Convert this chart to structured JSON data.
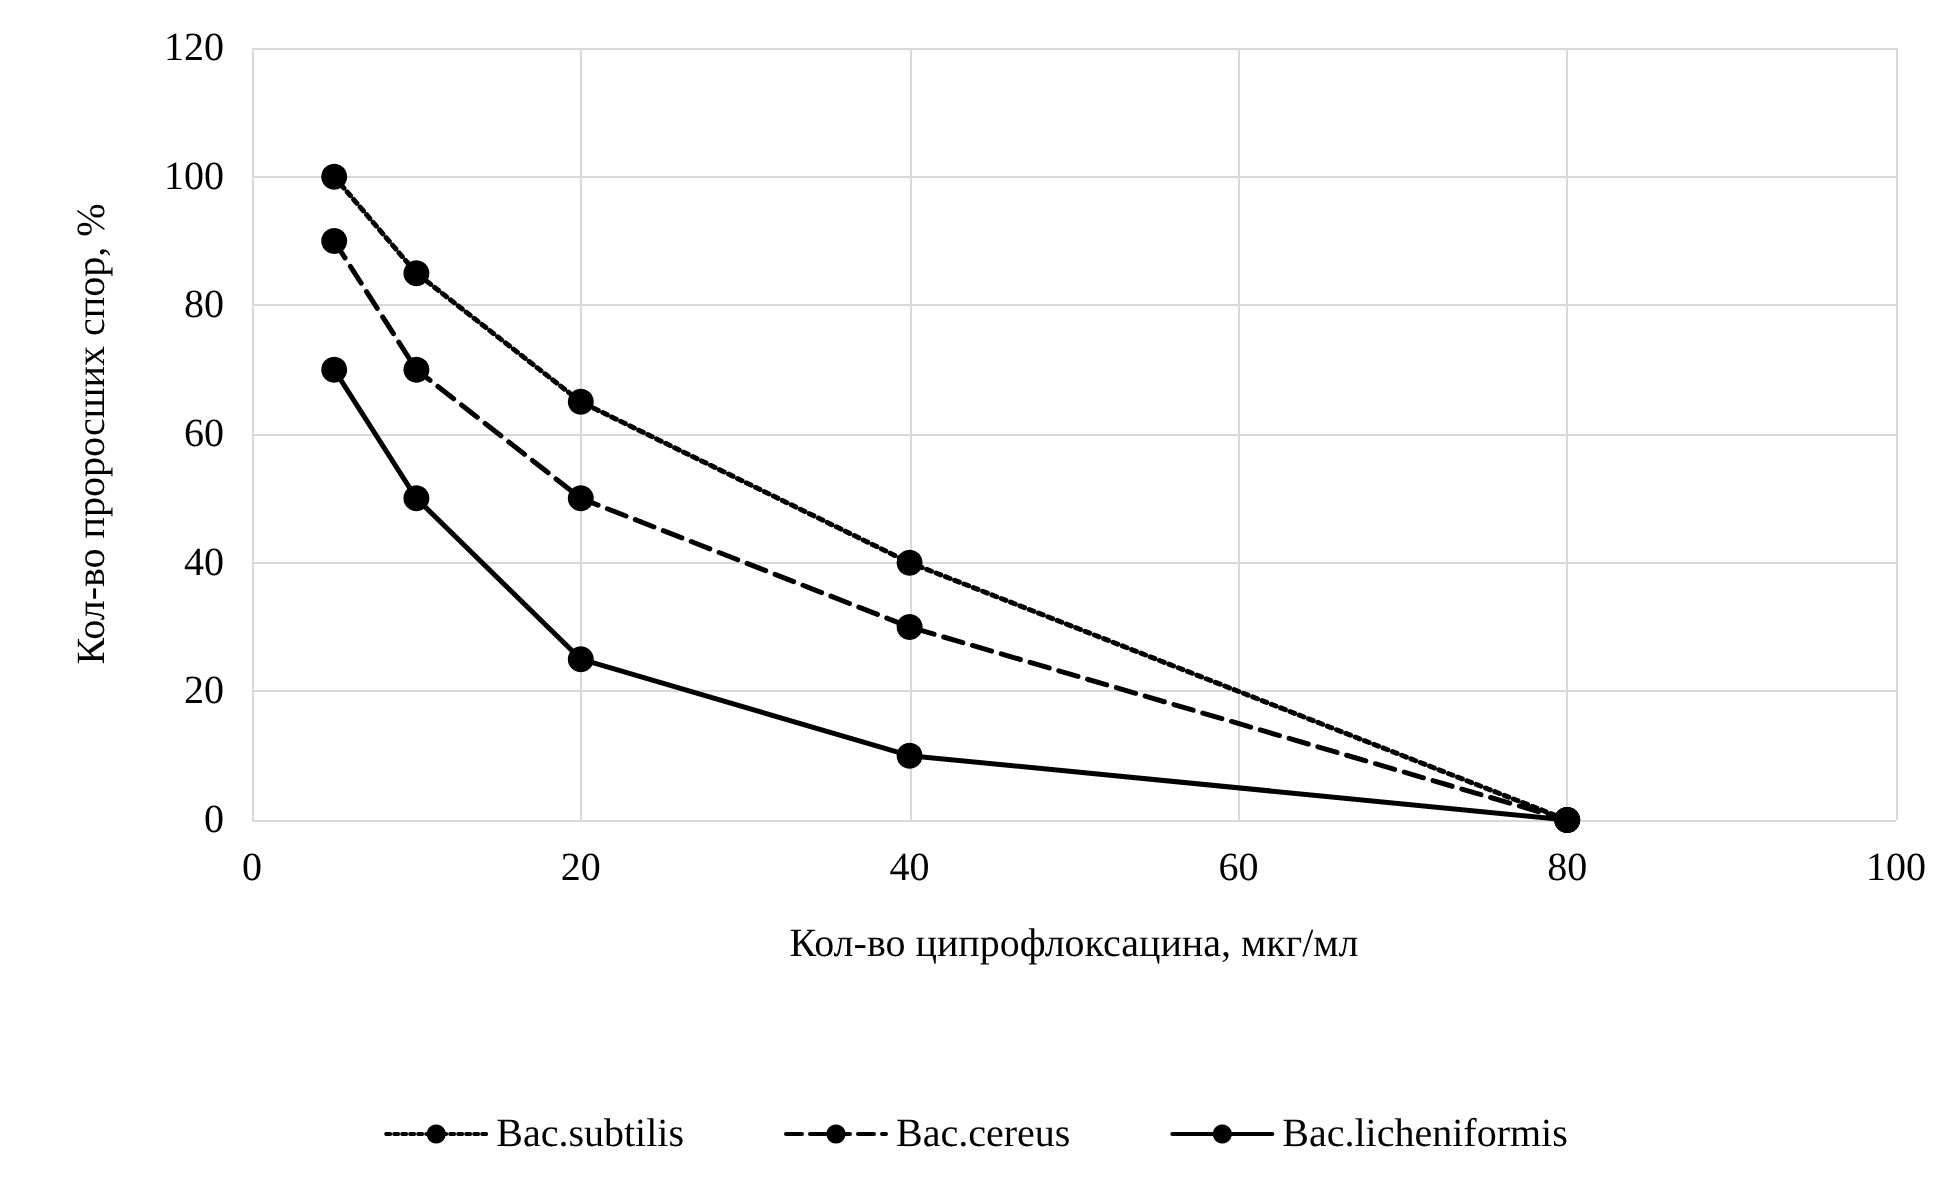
{
  "chart_data": {
    "type": "line",
    "xlabel": "Кол-во ципрофлоксацина, мкг/мл",
    "ylabel": "Кол-во проросших спор, %",
    "x": [
      5,
      10,
      20,
      40,
      80
    ],
    "series": [
      {
        "name": "Bac.subtilis",
        "color": "#000000",
        "line_style": "dotted",
        "values": [
          100,
          85,
          65,
          40,
          0
        ]
      },
      {
        "name": "Bac.cereus",
        "color": "#000000",
        "line_style": "dashed",
        "values": [
          90,
          70,
          50,
          30,
          0
        ]
      },
      {
        "name": "Bac.licheniformis",
        "color": "#000000",
        "line_style": "solid",
        "values": [
          70,
          50,
          25,
          10,
          0
        ]
      }
    ],
    "xlim": [
      0,
      100
    ],
    "xticks": [
      0,
      20,
      40,
      60,
      80,
      100
    ],
    "ylim": [
      0,
      120
    ],
    "yticks": [
      0,
      20,
      40,
      60,
      80,
      100,
      120
    ],
    "grid": true,
    "legend": "bottom",
    "marker": "circle"
  }
}
